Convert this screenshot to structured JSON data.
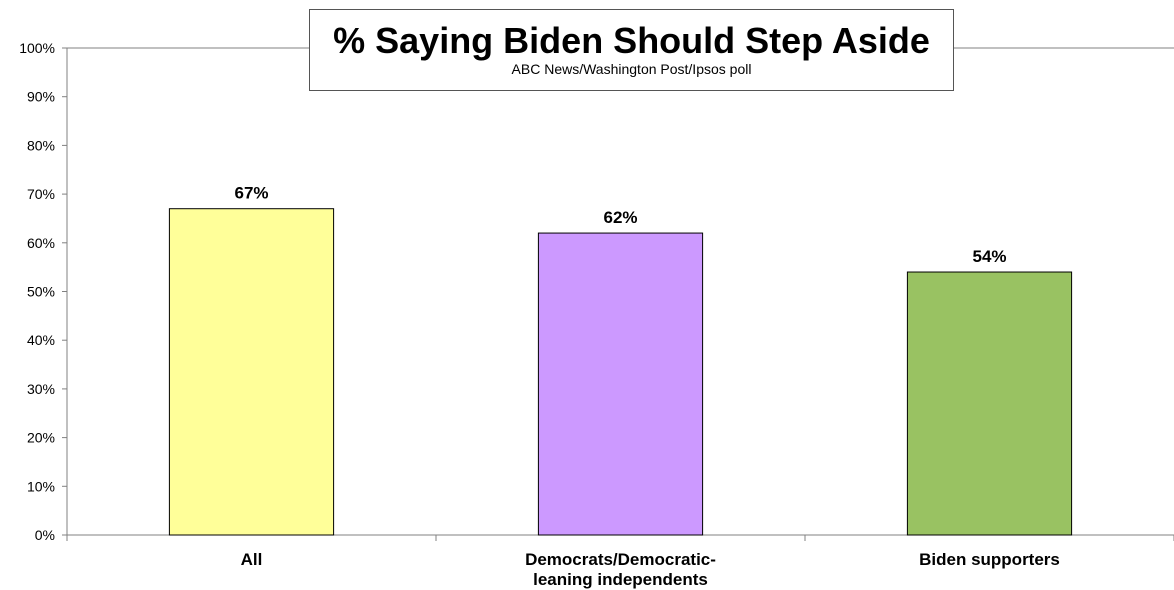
{
  "chart_data": {
    "type": "bar",
    "title": "% Saying Biden Should Step Aside",
    "subtitle": "ABC News/Washington Post/Ipsos poll",
    "categories": [
      "All",
      "Democrats/Democratic-leaning independents",
      "Biden supporters"
    ],
    "category_lines": [
      [
        "All"
      ],
      [
        "Democrats/Democratic-",
        "leaning independents"
      ],
      [
        "Biden supporters"
      ]
    ],
    "values": [
      67,
      62,
      54
    ],
    "value_labels": [
      "67%",
      "62%",
      "54%"
    ],
    "bar_colors": [
      "#ffff99",
      "#cc99ff",
      "#99c262"
    ],
    "ylim": [
      0,
      100
    ],
    "yticks": [
      0,
      10,
      20,
      30,
      40,
      50,
      60,
      70,
      80,
      90,
      100
    ],
    "ytick_labels": [
      "0%",
      "10%",
      "20%",
      "30%",
      "40%",
      "50%",
      "60%",
      "70%",
      "80%",
      "90%",
      "100%"
    ],
    "xlabel": "",
    "ylabel": "",
    "grid": false,
    "legend": "none"
  }
}
